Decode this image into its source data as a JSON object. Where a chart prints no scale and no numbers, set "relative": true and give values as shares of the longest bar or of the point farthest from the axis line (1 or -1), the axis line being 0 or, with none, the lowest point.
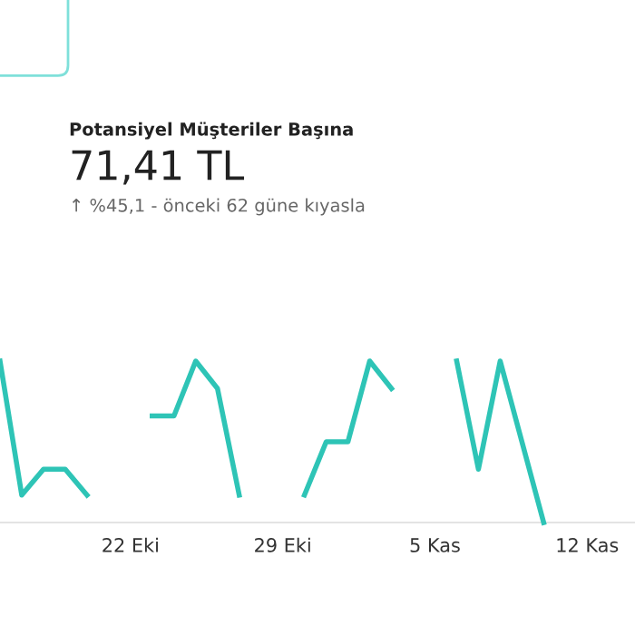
{
  "chart_data": {
    "type": "line",
    "title": "Potansiyel Müşteriler Başına",
    "subtitle": "71,41 TL",
    "annotations": [
      "↑ %45,1 - önceki 62 güne kıyasla"
    ],
    "categories": [
      null,
      null,
      null,
      null,
      null,
      null,
      "22 Eki",
      null,
      null,
      null,
      null,
      null,
      null,
      "29 Eki",
      null,
      null,
      null,
      null,
      null,
      null,
      "5 Kas",
      null,
      null,
      null,
      null,
      null,
      null,
      "12 Kas"
    ],
    "series": [
      {
        "color": "#2ec4b6",
        "values": [
          1,
          0.17,
          0.33,
          0.33,
          0.17,
          null,
          null,
          0.66,
          0.66,
          1,
          0.83,
          0.17,
          null,
          null,
          0.17,
          0.5,
          0.5,
          1,
          0.83,
          null,
          null,
          1,
          0.33,
          1,
          0.5,
          0,
          null,
          null
        ]
      }
    ],
    "relative": true,
    "marker": "none",
    "line_style": "solid"
  }
}
